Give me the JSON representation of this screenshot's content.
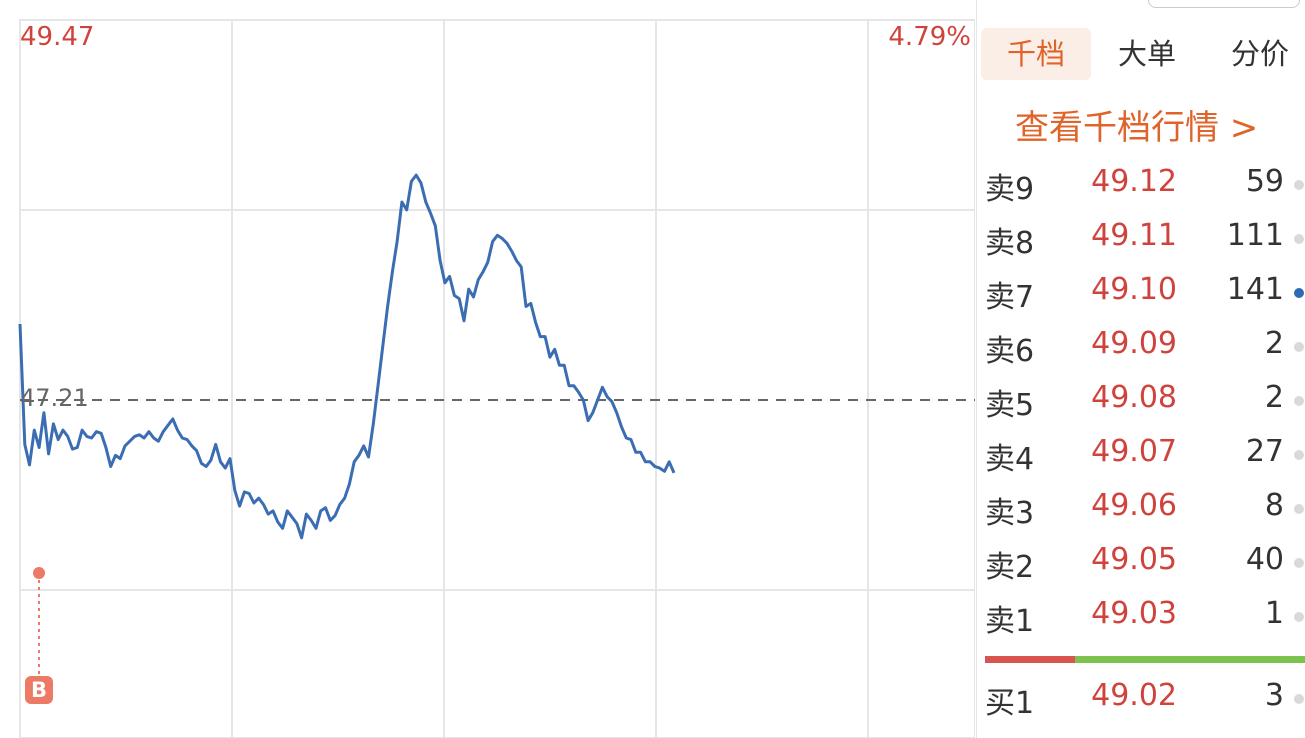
{
  "chart": {
    "price_high": "49.47",
    "pct_high": "4.79%",
    "prev_close": "47.21",
    "marker": "B",
    "colors": {
      "price_line": "#3b6db3",
      "avg_line": "#f0c35b",
      "grid": "#e6e6e6",
      "dashed": "#666666",
      "up": "#d0433d"
    }
  },
  "chart_data": {
    "type": "line",
    "title": "",
    "xlabel": "",
    "ylabel": "",
    "ylim": [
      44.95,
      49.47
    ],
    "ref_line": 47.21,
    "series": [
      {
        "values": [
          47.69,
          46.93,
          46.8,
          47.02,
          46.91,
          47.13,
          46.87,
          47.06,
          46.96,
          47.02,
          46.98,
          46.9,
          46.91,
          47.02,
          46.98,
          46.97,
          47.01,
          47.0,
          46.91,
          46.79,
          46.86,
          46.84,
          46.92,
          46.95,
          46.98,
          46.99,
          46.97,
          47.01,
          46.97,
          46.95,
          47.01,
          47.05,
          47.09,
          47.02,
          46.97,
          46.96,
          46.92,
          46.89,
          46.81,
          46.79,
          46.83,
          46.93,
          46.82,
          46.78,
          46.84,
          46.64,
          46.54,
          46.63,
          46.62,
          46.56,
          46.59,
          46.55,
          46.49,
          46.51,
          46.44,
          46.4,
          46.51,
          46.47,
          46.43,
          46.34,
          46.49,
          46.45,
          46.4,
          46.51,
          46.53,
          46.45,
          46.48,
          46.55,
          46.59,
          46.68,
          46.82,
          46.86,
          46.92,
          46.85,
          47.06,
          47.3,
          47.55,
          47.8,
          48.02,
          48.21,
          48.46,
          48.41,
          48.59,
          48.63,
          48.58,
          48.46,
          48.39,
          48.31,
          48.09,
          47.95,
          47.99,
          47.87,
          47.85,
          47.71,
          47.91,
          47.86,
          47.97,
          48.02,
          48.08,
          48.21,
          48.25,
          48.23,
          48.2,
          48.15,
          48.09,
          48.05,
          47.8,
          47.82,
          47.7,
          47.61,
          47.61,
          47.48,
          47.53,
          47.43,
          47.43,
          47.3,
          47.3,
          47.26,
          47.21,
          47.08,
          47.13,
          47.21,
          47.29,
          47.23,
          47.2,
          47.13,
          47.04,
          46.97,
          46.96,
          46.88,
          46.88,
          46.82,
          46.82,
          46.79,
          46.78,
          46.76,
          46.82,
          46.75
        ],
        "_note": "excluded"
      }
    ]
  },
  "tabs": {
    "qiandang": "千档",
    "dadan": "大单",
    "fenjia": "分价"
  },
  "qiandang_link": "查看千档行情 >",
  "order_book": {
    "sell": [
      {
        "label": "卖9",
        "price": "49.12",
        "vol": "59"
      },
      {
        "label": "卖8",
        "price": "49.11",
        "vol": "111"
      },
      {
        "label": "卖7",
        "price": "49.10",
        "vol": "141"
      },
      {
        "label": "卖6",
        "price": "49.09",
        "vol": "2"
      },
      {
        "label": "卖5",
        "price": "49.08",
        "vol": "2"
      },
      {
        "label": "卖4",
        "price": "49.07",
        "vol": "27"
      },
      {
        "label": "卖3",
        "price": "49.06",
        "vol": "8"
      },
      {
        "label": "卖2",
        "price": "49.05",
        "vol": "40"
      },
      {
        "label": "卖1",
        "price": "49.03",
        "vol": "1"
      }
    ],
    "buy": [
      {
        "label": "买1",
        "price": "49.02",
        "vol": "3"
      }
    ],
    "sell_ratio": 0.28
  }
}
